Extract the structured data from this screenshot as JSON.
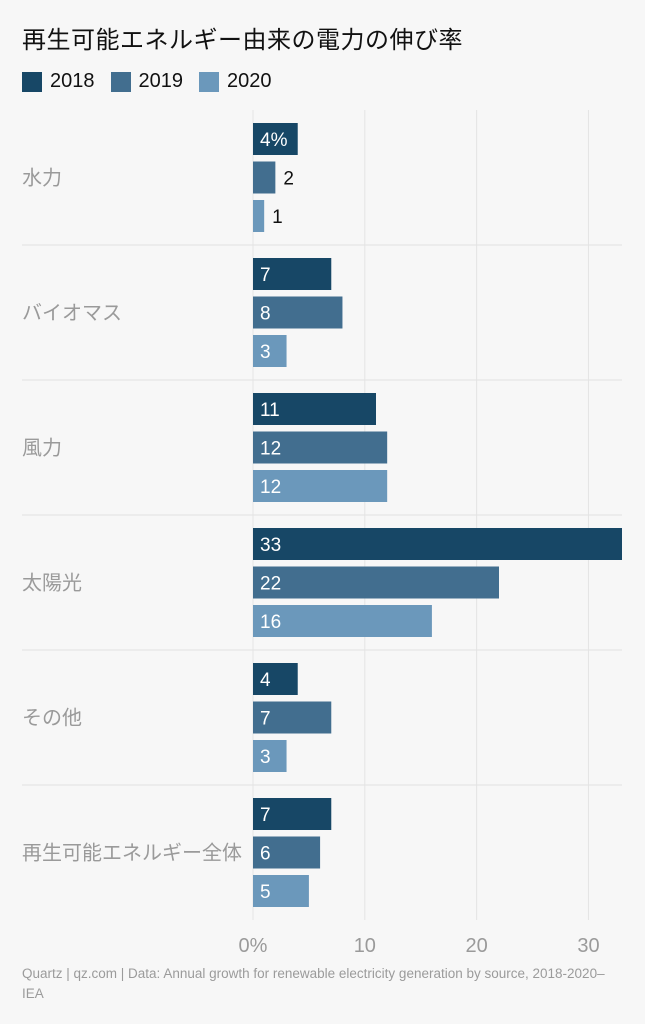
{
  "title": "再生可能エネルギー由来の電力の伸び率",
  "footer": "Quartz | qz.com | Data: Annual growth for renewable electricity generation by source, 2018-2020– IEA",
  "chart_data": {
    "type": "bar",
    "orientation": "horizontal",
    "categories": [
      "水力",
      "バイオマス",
      "風力",
      "太陽光",
      "その他",
      "再生可能エネルギー全体"
    ],
    "series": [
      {
        "name": "2018",
        "color": "#174766",
        "values": [
          4,
          7,
          11,
          33,
          4,
          7
        ]
      },
      {
        "name": "2019",
        "color": "#426e8f",
        "values": [
          2,
          8,
          12,
          22,
          7,
          6
        ]
      },
      {
        "name": "2020",
        "color": "#6b98bb",
        "values": [
          1,
          3,
          12,
          16,
          3,
          5
        ]
      }
    ],
    "xlim": [
      0,
      33
    ],
    "xticks": [
      0,
      10,
      20,
      30
    ],
    "xtick_labels": [
      "0%",
      "10",
      "20",
      "30"
    ],
    "data_label_suffix_first": "%",
    "grid": true,
    "legend_position": "top-left"
  }
}
